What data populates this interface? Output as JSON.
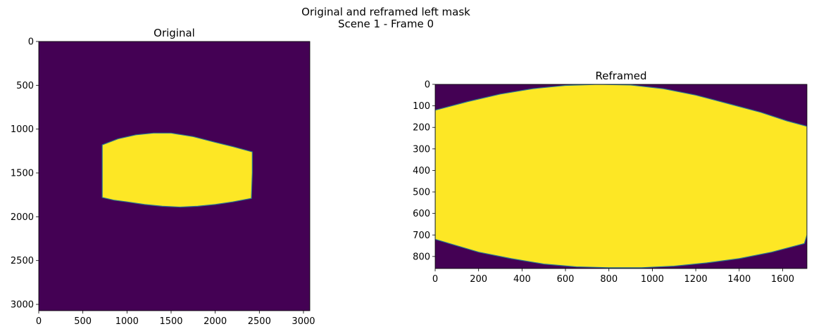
{
  "figure": {
    "suptitle_line1": "Original and reframed left mask",
    "suptitle_line2": "Scene 1 - Frame 0"
  },
  "colors": {
    "background": "#440154",
    "mask": "#fde725",
    "edge": "#2a788e"
  },
  "chart_data": [
    {
      "type": "heatmap",
      "title": "Original",
      "xlim": [
        0,
        3072
      ],
      "ylim": [
        3072,
        0
      ],
      "xticks": [
        0,
        500,
        1000,
        1500,
        2000,
        2500,
        3000
      ],
      "yticks": [
        0,
        500,
        1000,
        1500,
        2000,
        2500,
        3000
      ],
      "mask_polygon": [
        [
          720,
          1180
        ],
        [
          900,
          1110
        ],
        [
          1100,
          1065
        ],
        [
          1300,
          1045
        ],
        [
          1500,
          1045
        ],
        [
          1750,
          1085
        ],
        [
          2000,
          1150
        ],
        [
          2200,
          1200
        ],
        [
          2420,
          1260
        ],
        [
          2420,
          1500
        ],
        [
          2410,
          1790
        ],
        [
          2200,
          1830
        ],
        [
          2000,
          1860
        ],
        [
          1800,
          1880
        ],
        [
          1600,
          1890
        ],
        [
          1400,
          1880
        ],
        [
          1200,
          1860
        ],
        [
          1000,
          1830
        ],
        [
          850,
          1810
        ],
        [
          720,
          1780
        ]
      ]
    },
    {
      "type": "heatmap",
      "title": "Reframed",
      "xlim": [
        0,
        1712
      ],
      "ylim": [
        856,
        0
      ],
      "xticks": [
        0,
        200,
        400,
        600,
        800,
        1000,
        1200,
        1400,
        1600
      ],
      "yticks": [
        0,
        100,
        200,
        300,
        400,
        500,
        600,
        700,
        800
      ],
      "mask_polygon": [
        [
          0,
          120
        ],
        [
          150,
          80
        ],
        [
          300,
          45
        ],
        [
          450,
          20
        ],
        [
          600,
          5
        ],
        [
          750,
          0
        ],
        [
          900,
          3
        ],
        [
          1050,
          20
        ],
        [
          1200,
          50
        ],
        [
          1350,
          90
        ],
        [
          1500,
          130
        ],
        [
          1620,
          170
        ],
        [
          1712,
          195
        ],
        [
          1712,
          700
        ],
        [
          1700,
          740
        ],
        [
          1550,
          780
        ],
        [
          1400,
          810
        ],
        [
          1250,
          830
        ],
        [
          1100,
          845
        ],
        [
          950,
          852
        ],
        [
          800,
          852
        ],
        [
          650,
          848
        ],
        [
          500,
          835
        ],
        [
          350,
          810
        ],
        [
          200,
          780
        ],
        [
          100,
          750
        ],
        [
          0,
          720
        ]
      ]
    }
  ]
}
